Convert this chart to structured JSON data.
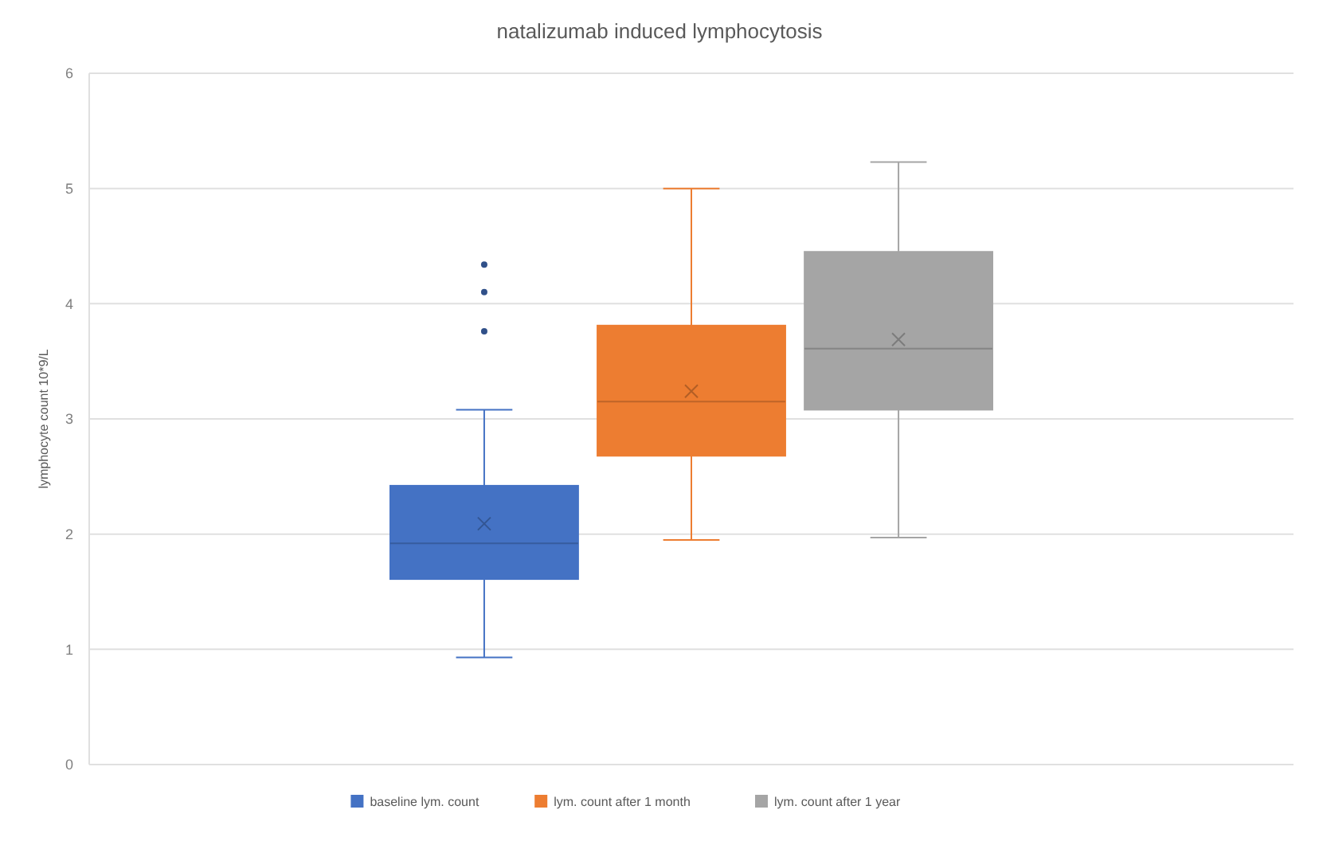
{
  "chart_data": {
    "type": "box",
    "title": "natalizumab induced lymphocytosis",
    "ylabel": "lymphocyte count 10*9/L",
    "categories": [
      null
    ],
    "series": [
      {
        "name": "baseline lym. count",
        "color": "#4472c4",
        "boxes": [
          {
            "low": 0.93,
            "q1": 1.61,
            "median": 1.92,
            "q3": 2.42,
            "high": 3.08,
            "mean": 2.09,
            "outliers": [
              3.76,
              4.1,
              4.34
            ]
          }
        ]
      },
      {
        "name": "lym. count after 1 month",
        "color": "#ed7d31",
        "boxes": [
          {
            "low": 1.95,
            "q1": 2.68,
            "median": 3.15,
            "q3": 3.81,
            "high": 5.0,
            "mean": 3.24
          }
        ]
      },
      {
        "name": "lym. count after 1 year",
        "color": "#a5a5a5",
        "boxes": [
          {
            "low": 1.97,
            "q1": 3.08,
            "median": 3.61,
            "q3": 4.45,
            "high": 5.23,
            "mean": 3.69
          }
        ]
      }
    ],
    "ylim": [
      0,
      6
    ],
    "yticks": [
      0,
      1,
      2,
      3,
      4,
      5,
      6
    ],
    "grid": "y",
    "legend": "bottom",
    "marker": "cross"
  }
}
